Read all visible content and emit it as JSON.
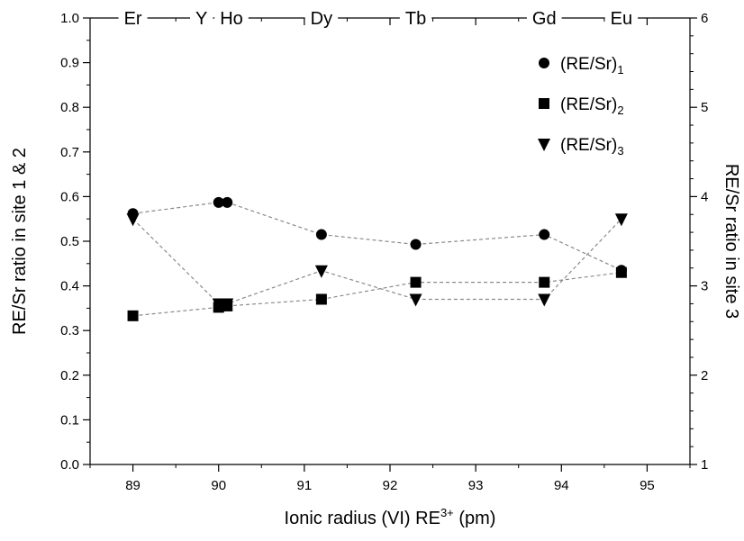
{
  "chart_data": {
    "type": "scatter",
    "xlabel": "Ionic radius (VI) RE",
    "xlabel_sup": "3+",
    "xlabel_suffix": " (pm)",
    "ylabel_left": "RE/Sr ratio in site 1 & 2",
    "ylabel_right": "RE/Sr ratio in site 3",
    "xlim": [
      88.5,
      95.5
    ],
    "ylim_left": [
      0.0,
      1.0
    ],
    "ylim_right": [
      1,
      6
    ],
    "x_ticks": [
      "89",
      "90",
      "91",
      "92",
      "93",
      "94",
      "95"
    ],
    "y_left_ticks": [
      "0.0",
      "0.1",
      "0.2",
      "0.3",
      "0.4",
      "0.5",
      "0.6",
      "0.7",
      "0.8",
      "0.9",
      "1.0"
    ],
    "y_right_ticks": [
      "1",
      "2",
      "3",
      "4",
      "5",
      "6"
    ],
    "top_elements": [
      {
        "label": "Er",
        "x": 89.0
      },
      {
        "label": "Y",
        "x": 89.8
      },
      {
        "label": "Ho",
        "x": 90.15
      },
      {
        "label": "Dy",
        "x": 91.2
      },
      {
        "label": "Tb",
        "x": 92.3
      },
      {
        "label": "Gd",
        "x": 93.8
      },
      {
        "label": "Eu",
        "x": 94.7
      }
    ],
    "grid": false,
    "legend_position": "top-right",
    "series": [
      {
        "name": "(RE/Sr)",
        "subscript": "1",
        "marker": "circle",
        "axis": "left",
        "points": [
          [
            89.0,
            0.562
          ],
          [
            90.0,
            0.587
          ],
          [
            90.1,
            0.587
          ],
          [
            91.2,
            0.515
          ],
          [
            92.3,
            0.493
          ],
          [
            93.8,
            0.515
          ],
          [
            94.7,
            0.435
          ]
        ]
      },
      {
        "name": "(RE/Sr)",
        "subscript": "2",
        "marker": "square",
        "axis": "left",
        "points": [
          [
            89.0,
            0.333
          ],
          [
            90.0,
            0.352
          ],
          [
            90.1,
            0.355
          ],
          [
            91.2,
            0.37
          ],
          [
            92.3,
            0.408
          ],
          [
            93.8,
            0.408
          ],
          [
            94.7,
            0.43
          ]
        ]
      },
      {
        "name": "(RE/Sr)",
        "subscript": "3",
        "marker": "triangle-down",
        "axis": "right",
        "points": [
          [
            89.0,
            3.75
          ],
          [
            90.0,
            2.8
          ],
          [
            90.1,
            2.8
          ],
          [
            91.2,
            3.17
          ],
          [
            92.3,
            2.85
          ],
          [
            93.8,
            2.85
          ],
          [
            94.7,
            3.75
          ]
        ]
      }
    ],
    "colors": {
      "marker": "#000000",
      "line": "#8a8a8a"
    }
  }
}
